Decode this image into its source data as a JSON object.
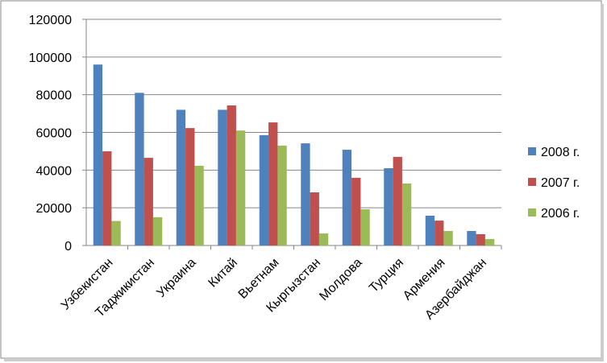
{
  "chart_data": {
    "type": "bar",
    "categories": [
      "Узбекистан",
      "Таджикистан",
      "Украина",
      "Китай",
      "Вьетнам",
      "Кыргызстан",
      "Молдова",
      "Турция",
      "Армения",
      "Азербайджан"
    ],
    "series": [
      {
        "name": "2008 г.",
        "color": "#4f81bd",
        "values": [
          96000,
          81000,
          72000,
          72000,
          58500,
          54200,
          50800,
          41000,
          15800,
          7700
        ]
      },
      {
        "name": "2007 г.",
        "color": "#c0504d",
        "values": [
          50000,
          46500,
          62300,
          74300,
          65300,
          28200,
          35900,
          47000,
          13200,
          6000
        ]
      },
      {
        "name": "2006 г.",
        "color": "#9bbb59",
        "values": [
          13000,
          15000,
          42300,
          61000,
          53000,
          6400,
          19200,
          32900,
          7700,
          3400
        ]
      }
    ],
    "ylim": [
      0,
      120000
    ],
    "yticks": [
      0,
      20000,
      40000,
      60000,
      80000,
      100000,
      120000
    ],
    "grid": true,
    "legend": "right"
  }
}
